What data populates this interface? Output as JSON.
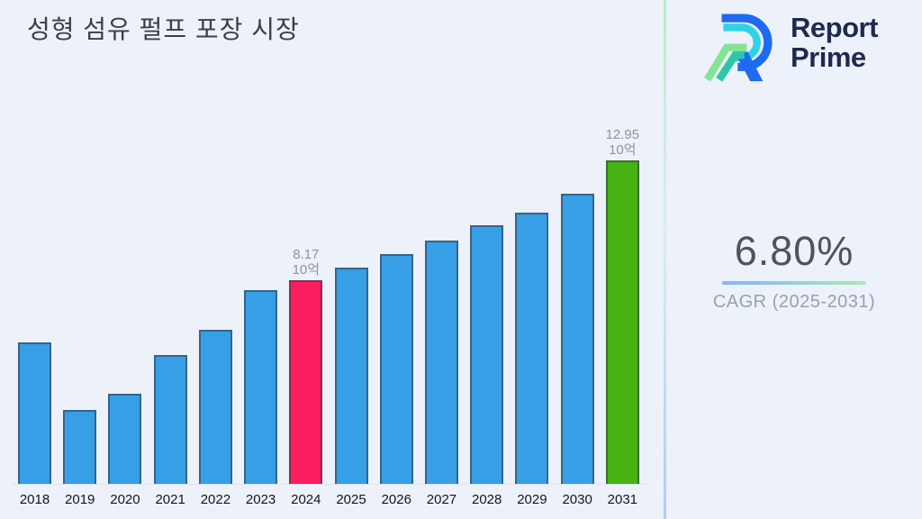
{
  "title": "성형 섬유 펄프 포장 시장",
  "logo": {
    "line1": "Report",
    "line2": "Prime"
  },
  "cagr": {
    "value": "6.80%",
    "label": "CAGR (2025-2031)"
  },
  "chart_data": {
    "type": "bar",
    "title": "성형 섬유 펄프 포장 시장",
    "categories": [
      "2018",
      "2019",
      "2020",
      "2021",
      "2022",
      "2023",
      "2024",
      "2025",
      "2026",
      "2027",
      "2028",
      "2029",
      "2030",
      "2031"
    ],
    "values": [
      5.67,
      2.96,
      3.61,
      5.16,
      6.17,
      7.75,
      8.17,
      8.65,
      9.2,
      9.75,
      10.36,
      10.87,
      11.62,
      12.95
    ],
    "unit_label": "10억",
    "data_labels": {
      "2024": "8.17",
      "2031": "12.95"
    },
    "ylim": [
      0,
      13.5
    ],
    "xlabel": "",
    "ylabel": "",
    "grid": false,
    "legend": false,
    "bar_color_default": "#379FE6",
    "bar_color_overrides": {
      "2024": "#FB1E5F",
      "2031": "#47B312"
    }
  },
  "colors": {
    "background": "#ECF1FA",
    "bar_blue": "#379FE6",
    "bar_pink": "#FB1E5F",
    "bar_green": "#47B312",
    "brand_navy": "#1E2A4E",
    "brand_blue": "#1E6BF2",
    "brand_cyan": "#30D3E6",
    "brand_green": "#82E594",
    "brand_teal": "#2EC6A8",
    "label_gray": "#8D939B"
  }
}
